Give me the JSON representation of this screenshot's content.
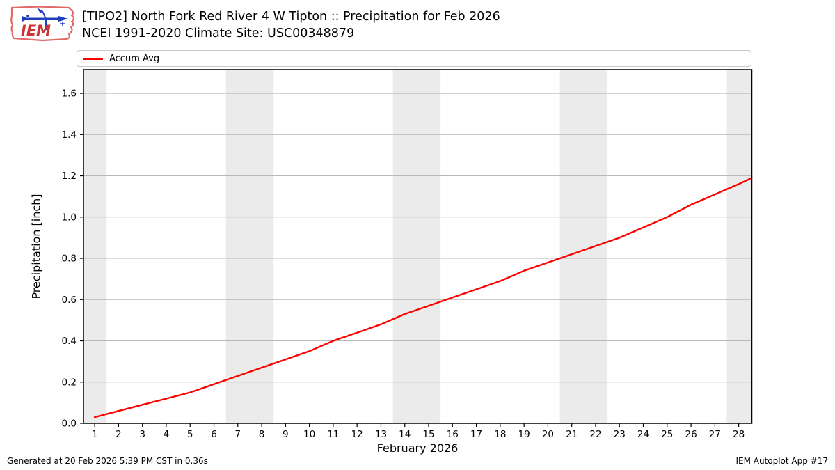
{
  "header": {
    "title": "[TIPO2] North Fork Red River 4 W Tipton :: Precipitation for Feb 2026",
    "subtitle": "NCEI 1991-2020 Climate Site: USC00348879",
    "logo_text": "IEM"
  },
  "legend": {
    "items": [
      {
        "label": "Accum Avg",
        "color": "#ff0000"
      }
    ]
  },
  "chart_data": {
    "type": "line",
    "title": "[TIPO2] North Fork Red River 4 W Tipton :: Precipitation for Feb 2026",
    "subtitle": "NCEI 1991-2020 Climate Site: USC00348879",
    "xlabel": "February 2026",
    "ylabel": "Precipitation [inch]",
    "xlim": [
      0.53,
      28.55
    ],
    "ylim": [
      0,
      1.715
    ],
    "x_ticks": [
      1,
      2,
      3,
      4,
      5,
      6,
      7,
      8,
      9,
      10,
      11,
      12,
      13,
      14,
      15,
      16,
      17,
      18,
      19,
      20,
      21,
      22,
      23,
      24,
      25,
      26,
      27,
      28
    ],
    "y_ticks": [
      0.0,
      0.2,
      0.4,
      0.6,
      0.8,
      1.0,
      1.2,
      1.4,
      1.6
    ],
    "grid": "horizontal",
    "grid_color": "#b8b8b8",
    "weekend_band_color": "#ebebeb",
    "weekend_bands": [
      [
        0.53,
        1.5
      ],
      [
        6.5,
        8.5
      ],
      [
        13.5,
        15.5
      ],
      [
        20.5,
        22.5
      ],
      [
        27.5,
        28.55
      ]
    ],
    "legend_position": "top",
    "series": [
      {
        "name": "Accum Avg",
        "color": "#ff0000",
        "x": [
          1,
          2,
          3,
          4,
          5,
          6,
          7,
          8,
          9,
          10,
          11,
          12,
          13,
          14,
          15,
          16,
          17,
          18,
          19,
          20,
          21,
          22,
          23,
          24,
          25,
          26,
          27,
          28,
          28.55
        ],
        "values": [
          0.03,
          0.06,
          0.09,
          0.12,
          0.15,
          0.19,
          0.23,
          0.27,
          0.31,
          0.35,
          0.4,
          0.44,
          0.48,
          0.53,
          0.57,
          0.61,
          0.65,
          0.69,
          0.74,
          0.78,
          0.82,
          0.86,
          0.9,
          0.95,
          1.0,
          1.06,
          1.11,
          1.16,
          1.19
        ]
      }
    ]
  },
  "footer": {
    "left": "Generated at 20 Feb 2026 5:39 PM CST in 0.36s",
    "right": "IEM Autoplot App #17"
  }
}
